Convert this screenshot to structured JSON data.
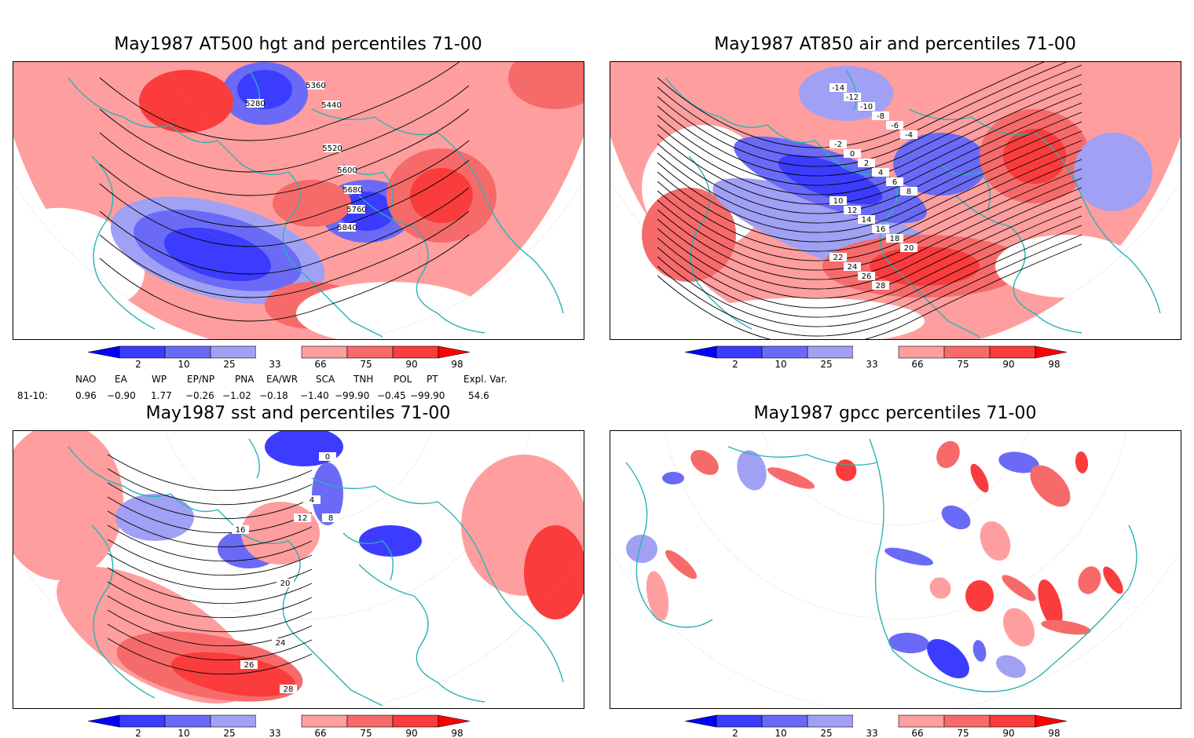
{
  "panels": [
    {
      "id": "hgt500",
      "title": "May1987 AT500 hgt and percentiles 71-00",
      "contour_labels": [
        "5280",
        "5360",
        "5440",
        "5520",
        "5600",
        "5680",
        "5760",
        "5840"
      ]
    },
    {
      "id": "air850",
      "title": "May1987 AT850 air and percentiles 71-00",
      "contour_labels": [
        "-14",
        "-12",
        "-10",
        "-8",
        "-6",
        "-4",
        "-2",
        "0",
        "2",
        "4",
        "6",
        "8",
        "10",
        "12",
        "14",
        "16",
        "18",
        "20",
        "22",
        "24",
        "26",
        "28"
      ]
    },
    {
      "id": "sst",
      "title": "May1987 sst and percentiles 71-00",
      "contour_labels": [
        "0",
        "4",
        "8",
        "12",
        "16",
        "20",
        "24",
        "26",
        "28"
      ]
    },
    {
      "id": "gpcc",
      "title": "May1987 gpcc percentiles 71-00",
      "contour_labels": []
    }
  ],
  "colorbar": {
    "labels": [
      "2",
      "10",
      "25",
      "33",
      "66",
      "75",
      "90",
      "98"
    ],
    "colors": {
      "dark_blue": "#0000ff",
      "blue": "#3c3cff",
      "mid_blue": "#6a6af7",
      "light_blue": "#a0a0f5",
      "white": "#ffffff",
      "light_red": "#ff9e9e",
      "mid_red": "#f76a6a",
      "red": "#fa3c3c",
      "dark_red": "#ff0000"
    }
  },
  "indices": {
    "headers": [
      "NAO",
      "EA",
      "WP",
      "EP/NP",
      "PNA",
      "EA/WR",
      "SCA",
      "TNH",
      "POL",
      "PT",
      "Expl. Var."
    ],
    "row_label": "81-10:",
    "values": [
      "0.96",
      "−0.90",
      "1.77",
      "−0.26",
      "−1.02",
      "−0.18",
      "−1.40",
      "−99.90",
      "−0.45",
      "−99.90",
      "54.6"
    ]
  },
  "style_colors": {
    "coastline": "#2ab3b3",
    "contour": "#000000",
    "grid": "#9a9a9a"
  }
}
